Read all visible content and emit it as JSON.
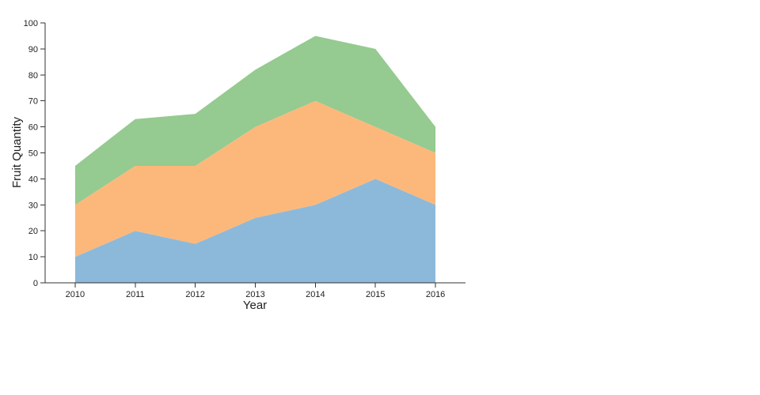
{
  "chart_data": {
    "type": "area",
    "stacked": true,
    "xlabel": "Year",
    "ylabel": "Fruit Quantity",
    "x": [
      2010,
      2011,
      2012,
      2013,
      2014,
      2015,
      2016
    ],
    "x_tick_labels": [
      "2010",
      "2011",
      "2012",
      "2013",
      "2014",
      "2015",
      "2016"
    ],
    "y_ticks": [
      0,
      10,
      20,
      30,
      40,
      50,
      60,
      70,
      80,
      90,
      100
    ],
    "ylim": [
      0,
      100
    ],
    "grid": false,
    "legend": "none",
    "series": [
      {
        "name": "bottom-blue",
        "color": "#8cb9da",
        "values": [
          10,
          20,
          15,
          25,
          30,
          40,
          30
        ],
        "cumulative": [
          10,
          20,
          15,
          25,
          30,
          40,
          30
        ]
      },
      {
        "name": "middle-orange",
        "color": "#fcb87a",
        "values": [
          20,
          25,
          30,
          35,
          40,
          20,
          20
        ],
        "cumulative": [
          30,
          45,
          45,
          60,
          70,
          60,
          50
        ]
      },
      {
        "name": "top-green",
        "color": "#95ca90",
        "values": [
          15,
          18,
          20,
          22,
          25,
          30,
          10
        ],
        "cumulative": [
          45,
          63,
          65,
          82,
          95,
          90,
          60
        ]
      }
    ],
    "axis_color": "#333333",
    "label_color": "#1f1f1f"
  }
}
